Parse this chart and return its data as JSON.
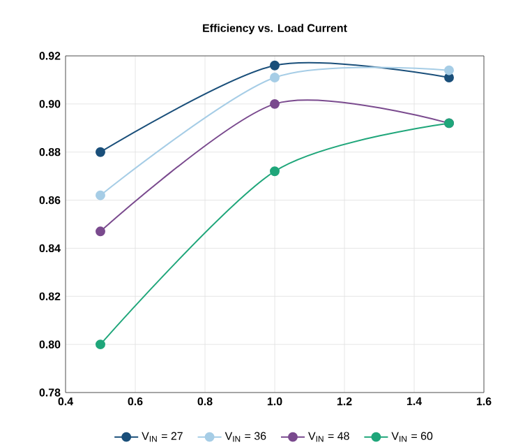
{
  "chart_data": {
    "type": "line",
    "title": "Efficiency vs. Load Current",
    "x": [
      0.5,
      1.0,
      1.5
    ],
    "series": [
      {
        "name": "V$_{IN}$ = 27",
        "color": "#1a4f7a",
        "values": [
          0.88,
          0.916,
          0.911
        ]
      },
      {
        "name": "V$_{IN}$ = 36",
        "color": "#a6cde6",
        "values": [
          0.862,
          0.911,
          0.914
        ]
      },
      {
        "name": "V$_{IN}$ = 48",
        "color": "#7a4a8e",
        "values": [
          0.847,
          0.9,
          0.892
        ]
      },
      {
        "name": "V$_{IN}$ = 60",
        "color": "#1fa67a",
        "values": [
          0.8,
          0.872,
          0.892
        ]
      }
    ],
    "xlim": [
      0.4,
      1.6
    ],
    "xticks": [
      0.4,
      0.6,
      0.8,
      {
        "value": 1.0,
        "label": "1.0"
      },
      1.2,
      1.4,
      1.6
    ],
    "ylim": [
      0.78,
      0.92
    ],
    "yticks": [
      0.78,
      {
        "value": 0.8,
        "label": "0.80"
      },
      0.82,
      0.84,
      0.86,
      0.88,
      {
        "value": 0.9,
        "label": "0.90"
      },
      0.92
    ],
    "grid": true,
    "legend": "bottom",
    "marker": "circle",
    "line_style": "solid"
  }
}
